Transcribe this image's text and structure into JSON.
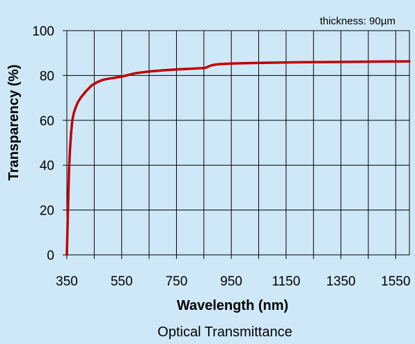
{
  "chart_data": {
    "type": "line",
    "title": "Optical Transmittance",
    "xlabel": "Wavelength (nm)",
    "ylabel": "Transparency (%)",
    "annotation": "thickness: 90µm",
    "xlim": [
      350,
      1600
    ],
    "ylim": [
      0,
      100
    ],
    "x_ticks": [
      350,
      550,
      750,
      950,
      1150,
      1350,
      1550
    ],
    "y_ticks": [
      0,
      20,
      40,
      60,
      80,
      100
    ],
    "grid": true,
    "legend": "none",
    "series_color": "#c00000",
    "series": [
      {
        "x": [
          350,
          352,
          355,
          358,
          362,
          366,
          370,
          375,
          380,
          390,
          400,
          420,
          440,
          460,
          480,
          500,
          550,
          600,
          650,
          700,
          750,
          800,
          850,
          860,
          870,
          880,
          890,
          900,
          950,
          1000,
          1100,
          1200,
          1300,
          1400,
          1500,
          1600
        ],
        "y": [
          0,
          10,
          25,
          38,
          48,
          55,
          60,
          63,
          65,
          68,
          70,
          73,
          75.5,
          77,
          78,
          78.5,
          79.5,
          81,
          81.8,
          82.3,
          82.7,
          83,
          83.3,
          83.6,
          84.2,
          84.6,
          84.8,
          85,
          85.3,
          85.5,
          85.7,
          85.9,
          86,
          86.1,
          86.2,
          86.3
        ]
      }
    ]
  }
}
